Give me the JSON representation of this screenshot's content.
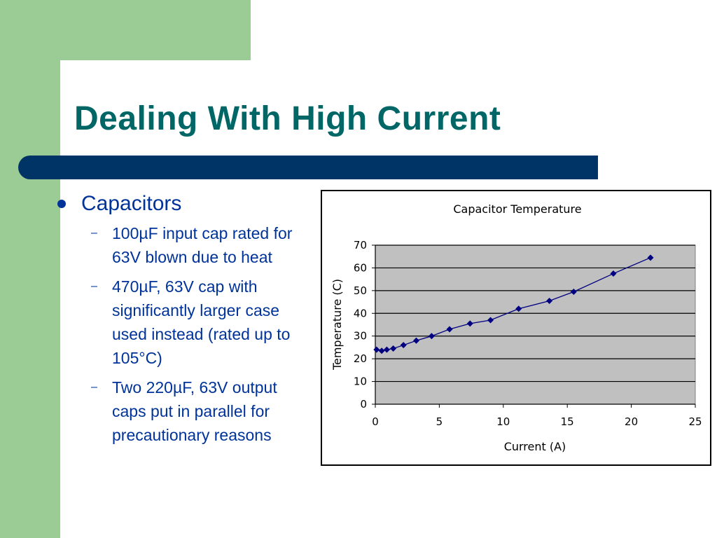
{
  "slide": {
    "title": "Dealing With High Current"
  },
  "bullets": {
    "main": "Capacitors",
    "dash": "–",
    "items": [
      "100µF input cap rated for 63V blown due to heat",
      "470µF, 63V cap with significantly larger case used instead (rated up to 105°C)",
      "Two 220µF, 63V output caps put in parallel for precautionary reasons"
    ]
  },
  "colors": {
    "accent_green": "#9ccc96",
    "title_teal": "#006666",
    "bar_navy": "#003366",
    "text_blue": "#003399",
    "plot_bg": "#c0c0c0",
    "series": "#000080"
  },
  "chart_data": {
    "type": "line",
    "title": "Capacitor Temperature",
    "xlabel": "Current (A)",
    "ylabel": "Temperature (C)",
    "xlim": [
      0,
      25
    ],
    "ylim": [
      0,
      70
    ],
    "xticks": [
      0,
      5,
      10,
      15,
      20,
      25
    ],
    "yticks": [
      0,
      10,
      20,
      30,
      40,
      50,
      60,
      70
    ],
    "grid": true,
    "x": [
      0.1,
      0.5,
      0.9,
      1.4,
      2.2,
      3.2,
      4.4,
      5.8,
      7.4,
      9.0,
      11.2,
      13.6,
      15.5,
      18.6,
      21.5
    ],
    "y": [
      24,
      23.5,
      24,
      24.5,
      26,
      28,
      30,
      33,
      35.5,
      37,
      42,
      45.5,
      49.5,
      57.5,
      64.5
    ]
  }
}
